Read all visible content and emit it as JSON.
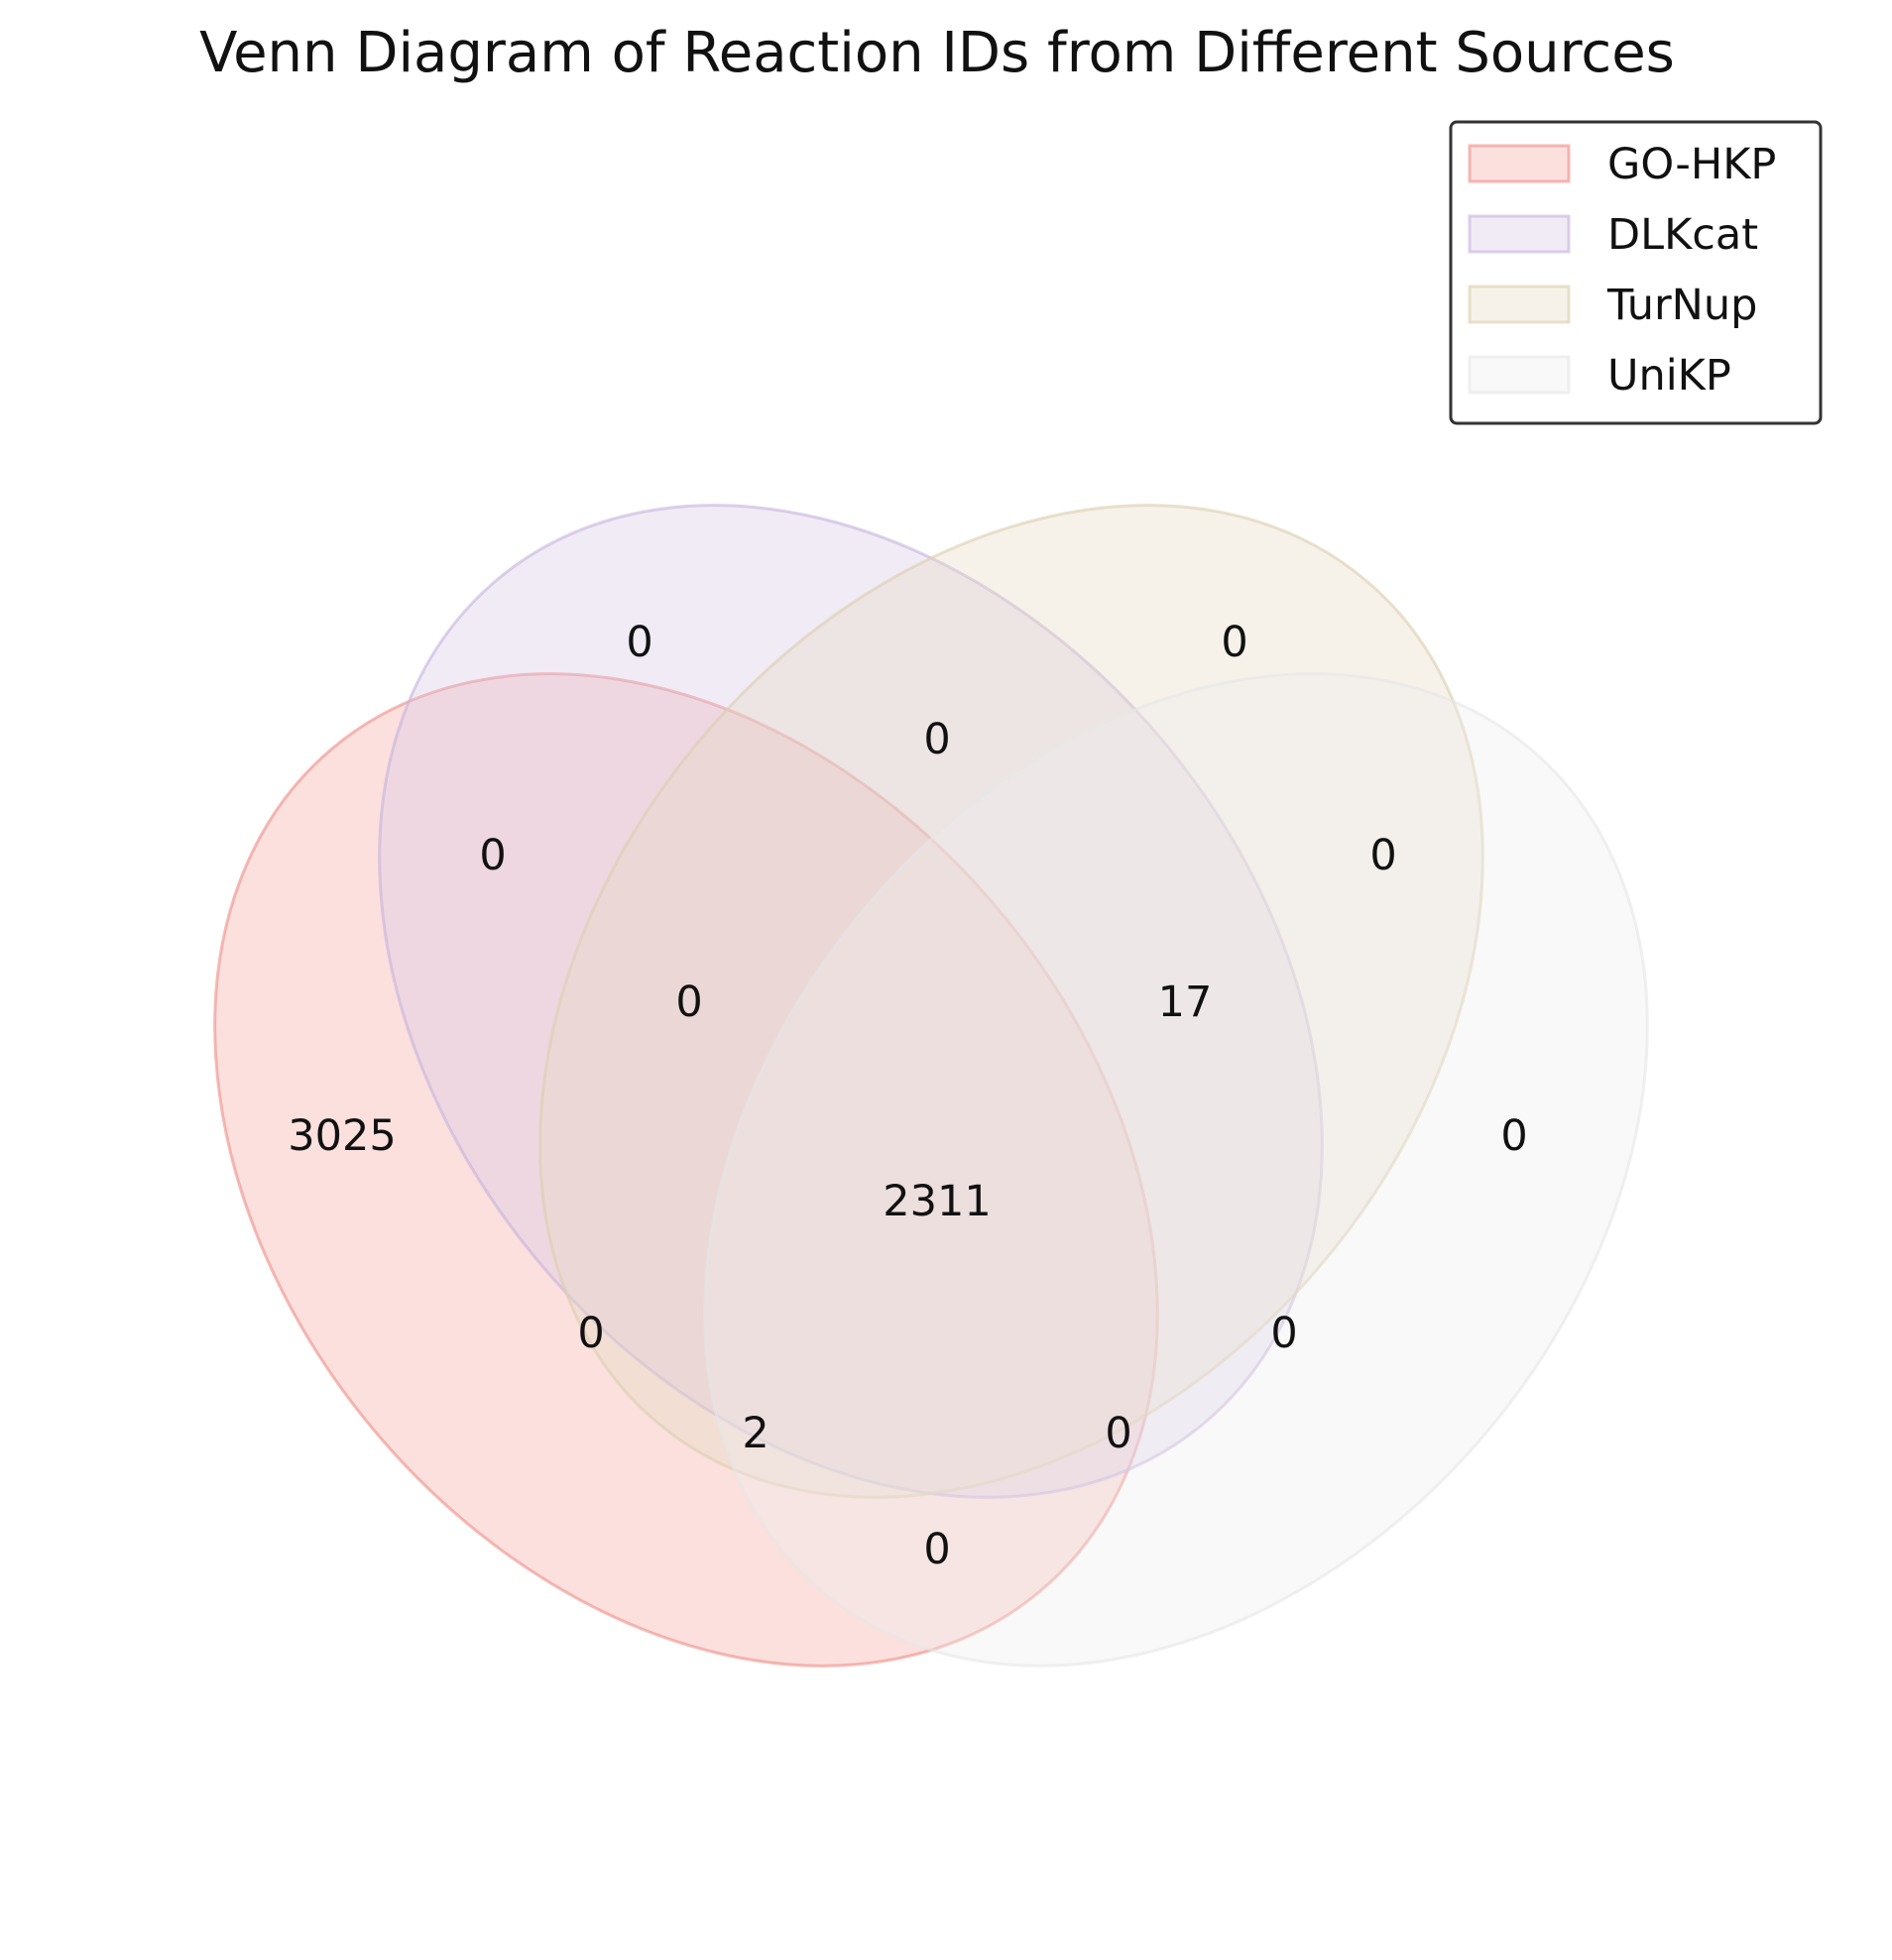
{
  "title": "Venn Diagram of Reaction IDs from Different Sources",
  "sets": [
    {
      "name": "GO-HKP",
      "fill": "#f4a6a0",
      "stroke": "#f08c86"
    },
    {
      "name": "DLKcat",
      "fill": "#d7c5e6",
      "stroke": "#c6b2dc"
    },
    {
      "name": "TurNup",
      "fill": "#e6dbc4",
      "stroke": "#dccdae"
    },
    {
      "name": "UniKP",
      "fill": "#eeeeee",
      "stroke": "#e6e6e6"
    }
  ],
  "regions": [
    {
      "sets": [
        "DLKcat"
      ],
      "count": "0"
    },
    {
      "sets": [
        "TurNup"
      ],
      "count": "0"
    },
    {
      "sets": [
        "DLKcat",
        "TurNup"
      ],
      "count": "0"
    },
    {
      "sets": [
        "GO-HKP",
        "DLKcat"
      ],
      "count": "0"
    },
    {
      "sets": [
        "TurNup",
        "UniKP"
      ],
      "count": "0"
    },
    {
      "sets": [
        "GO-HKP",
        "DLKcat",
        "TurNup"
      ],
      "count": "0"
    },
    {
      "sets": [
        "DLKcat",
        "TurNup",
        "UniKP"
      ],
      "count": "17"
    },
    {
      "sets": [
        "GO-HKP"
      ],
      "count": "3025"
    },
    {
      "sets": [
        "UniKP"
      ],
      "count": "0"
    },
    {
      "sets": [
        "GO-HKP",
        "DLKcat",
        "TurNup",
        "UniKP"
      ],
      "count": "2311"
    },
    {
      "sets": [
        "GO-HKP",
        "TurNup"
      ],
      "count": "0"
    },
    {
      "sets": [
        "DLKcat",
        "UniKP"
      ],
      "count": "0"
    },
    {
      "sets": [
        "GO-HKP",
        "TurNup",
        "UniKP"
      ],
      "count": "2"
    },
    {
      "sets": [
        "GO-HKP",
        "DLKcat",
        "UniKP"
      ],
      "count": "0"
    },
    {
      "sets": [
        "GO-HKP",
        "UniKP"
      ],
      "count": "0"
    }
  ],
  "legend": {
    "placement": "top-right"
  }
}
